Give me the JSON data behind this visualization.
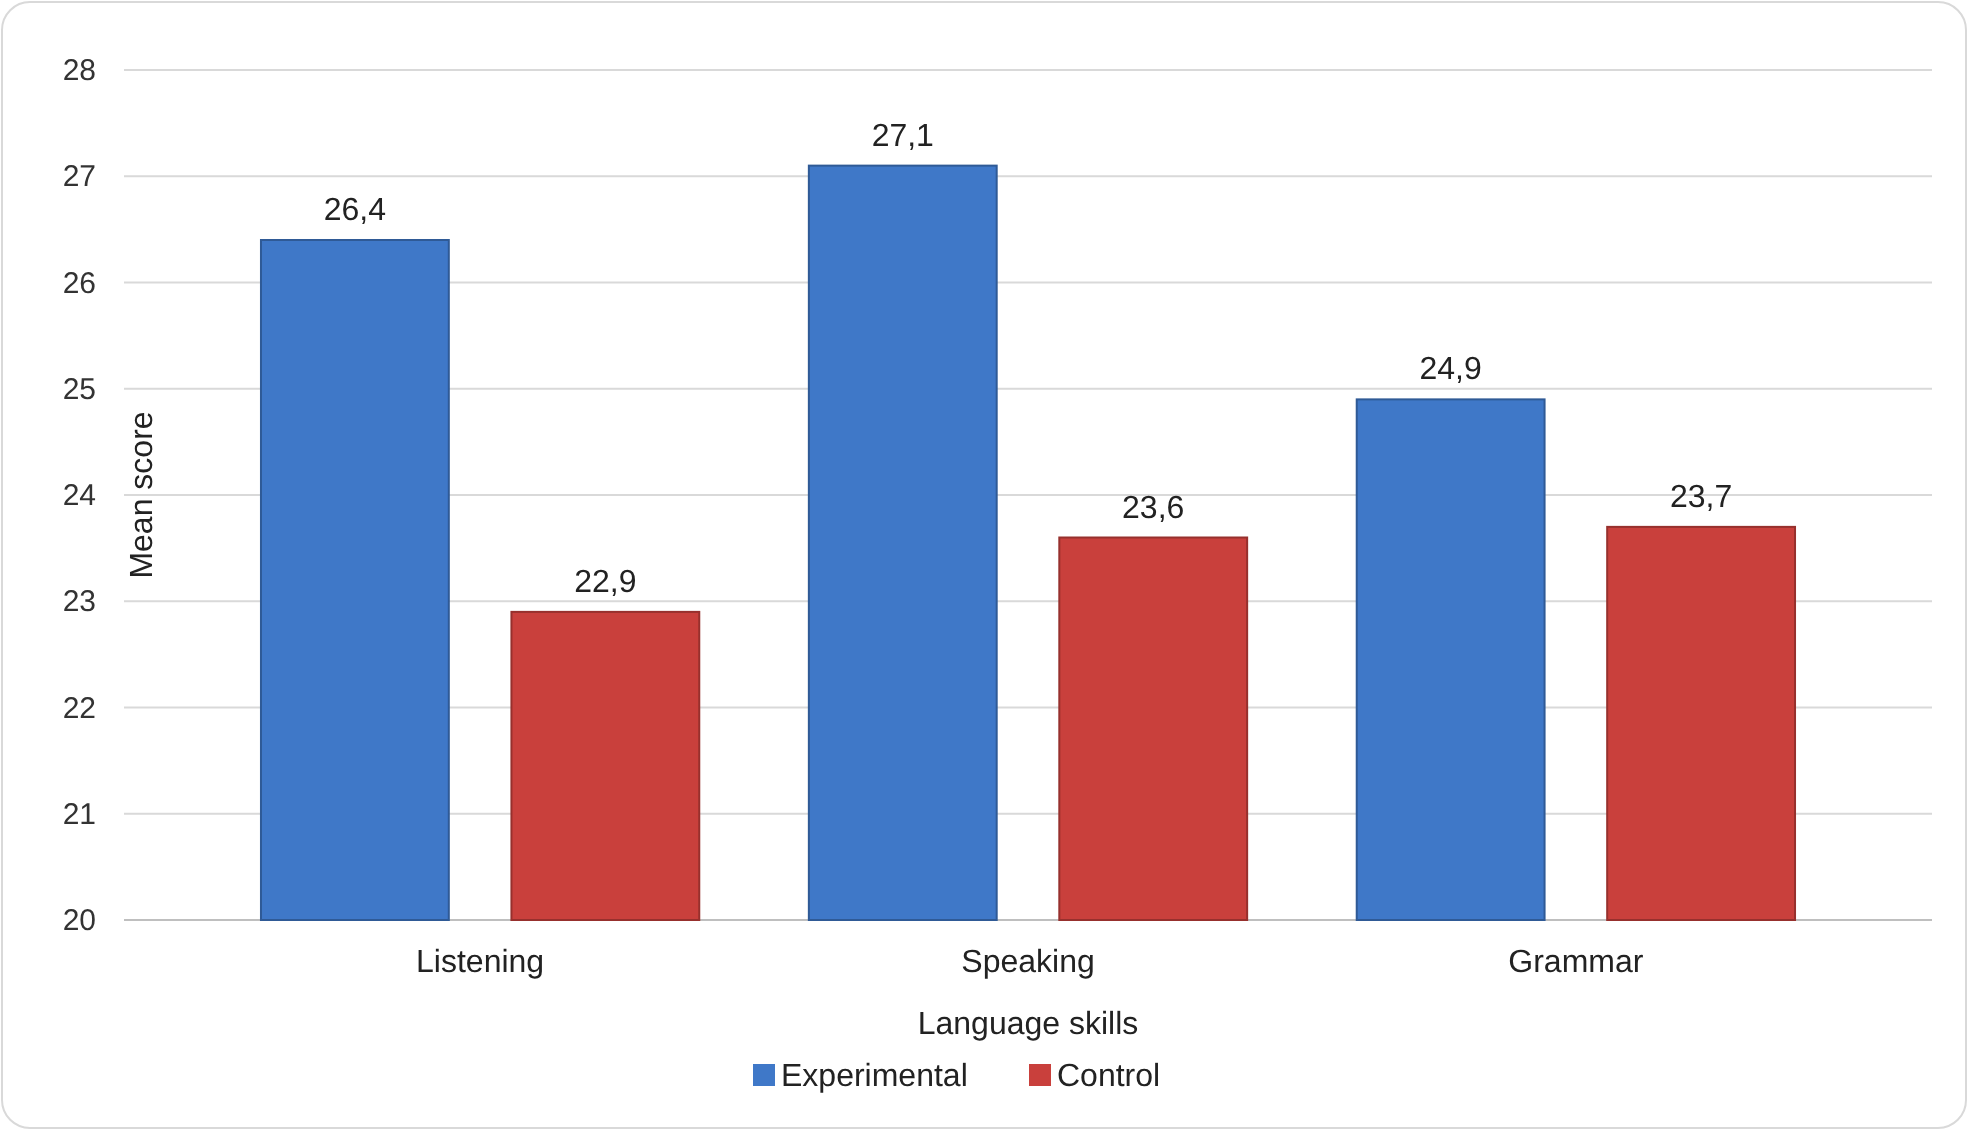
{
  "chart_data": {
    "type": "bar",
    "xlabel": "Language skills",
    "ylabel": "Mean score",
    "categories": [
      "Listening",
      "Speaking",
      "Grammar"
    ],
    "series": [
      {
        "name": "Experimental",
        "color": "#3f78c8",
        "values": [
          26.4,
          27.1,
          24.9
        ],
        "value_labels": [
          "26,4",
          "27,1",
          "24,9"
        ]
      },
      {
        "name": "Control",
        "color": "#c9403c",
        "values": [
          22.9,
          23.6,
          23.7
        ],
        "value_labels": [
          "22,9",
          "23,6",
          "23,7"
        ]
      }
    ],
    "ylim": [
      20,
      28
    ],
    "yticks": [
      20,
      21,
      22,
      23,
      24,
      25,
      26,
      27,
      28
    ],
    "grid": "y",
    "legend": "bottom"
  }
}
